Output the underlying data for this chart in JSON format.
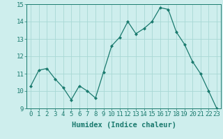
{
  "x": [
    0,
    1,
    2,
    3,
    4,
    5,
    6,
    7,
    8,
    9,
    10,
    11,
    12,
    13,
    14,
    15,
    16,
    17,
    18,
    19,
    20,
    21,
    22,
    23
  ],
  "y": [
    10.3,
    11.2,
    11.3,
    10.7,
    10.2,
    9.5,
    10.3,
    10.0,
    9.6,
    11.1,
    12.6,
    13.1,
    14.0,
    13.3,
    13.6,
    14.0,
    14.8,
    14.7,
    13.4,
    12.7,
    11.7,
    11.0,
    10.0,
    9.0
  ],
  "xlabel": "Humidex (Indice chaleur)",
  "line_color": "#1a7a6e",
  "marker": "D",
  "marker_size": 2,
  "bg_color": "#ceeeed",
  "grid_color": "#a8d8d5",
  "xlim": [
    -0.5,
    23.5
  ],
  "ylim": [
    9,
    15
  ],
  "yticks": [
    9,
    10,
    11,
    12,
    13,
    14,
    15
  ],
  "xticks": [
    0,
    1,
    2,
    3,
    4,
    5,
    6,
    7,
    8,
    9,
    10,
    11,
    12,
    13,
    14,
    15,
    16,
    17,
    18,
    19,
    20,
    21,
    22,
    23
  ],
  "xlabel_fontsize": 7.5,
  "tick_fontsize": 6.5
}
